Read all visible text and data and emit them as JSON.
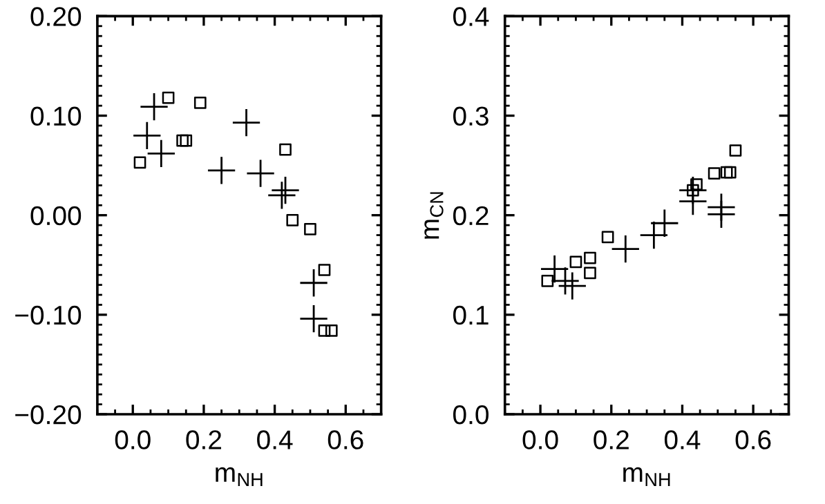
{
  "chart_data": [
    {
      "type": "scatter",
      "xlabel": "m$_{NH}$",
      "xlim": [
        -0.1,
        0.7
      ],
      "ylim": [
        -0.2,
        0.2
      ],
      "xticks": [
        {
          "value": 0.0,
          "label": "0.0"
        },
        {
          "value": 0.2,
          "label": "0.2"
        },
        {
          "value": 0.4,
          "label": "0.4"
        },
        {
          "value": 0.6,
          "label": "0.6"
        }
      ],
      "yticks": [
        {
          "value": -0.2,
          "label": "−0.20"
        },
        {
          "value": -0.1,
          "label": "−0.10"
        },
        {
          "value": 0.0,
          "label": "0.00"
        },
        {
          "value": 0.1,
          "label": "0.10"
        },
        {
          "value": 0.2,
          "label": "0.20"
        }
      ],
      "grid": false,
      "series": [
        {
          "color": "#000000",
          "marker": "cross",
          "x": [
            0.06,
            0.04,
            0.08,
            0.32,
            0.25,
            0.36,
            0.43,
            0.42,
            0.51,
            0.51
          ],
          "values": [
            0.109,
            0.08,
            0.062,
            0.093,
            0.045,
            0.042,
            0.025,
            0.02,
            -0.068,
            -0.104
          ]
        },
        {
          "color": "#000000",
          "marker": "square",
          "x": [
            0.02,
            0.1,
            0.14,
            0.15,
            0.19,
            0.43,
            0.45,
            0.5,
            0.54,
            0.54,
            0.56
          ],
          "values": [
            0.053,
            0.118,
            0.075,
            0.075,
            0.113,
            0.066,
            -0.005,
            -0.014,
            -0.055,
            -0.116,
            -0.116
          ]
        }
      ]
    },
    {
      "type": "scatter",
      "xlabel": "m$_{NH}$",
      "ylabel": "m$_{CN}$",
      "xlim": [
        -0.1,
        0.7
      ],
      "ylim": [
        0.0,
        0.4
      ],
      "xticks": [
        {
          "value": 0.0,
          "label": "0.0"
        },
        {
          "value": 0.2,
          "label": "0.2"
        },
        {
          "value": 0.4,
          "label": "0.4"
        },
        {
          "value": 0.6,
          "label": "0.6"
        }
      ],
      "yticks": [
        {
          "value": 0.0,
          "label": "0.0"
        },
        0.1,
        0.2,
        0.3,
        0.4
      ],
      "grid": false,
      "series": [
        {
          "color": "#000000",
          "marker": "cross",
          "x": [
            0.04,
            0.07,
            0.09,
            0.24,
            0.32,
            0.35,
            0.43,
            0.43,
            0.51,
            0.51
          ],
          "values": [
            0.146,
            0.134,
            0.129,
            0.166,
            0.18,
            0.192,
            0.214,
            0.225,
            0.208,
            0.201
          ]
        },
        {
          "color": "#000000",
          "marker": "square",
          "x": [
            0.02,
            0.1,
            0.14,
            0.14,
            0.19,
            0.43,
            0.44,
            0.49,
            0.525,
            0.535,
            0.55
          ],
          "values": [
            0.134,
            0.153,
            0.157,
            0.142,
            0.178,
            0.225,
            0.231,
            0.242,
            0.243,
            0.243,
            0.265
          ]
        }
      ]
    }
  ]
}
